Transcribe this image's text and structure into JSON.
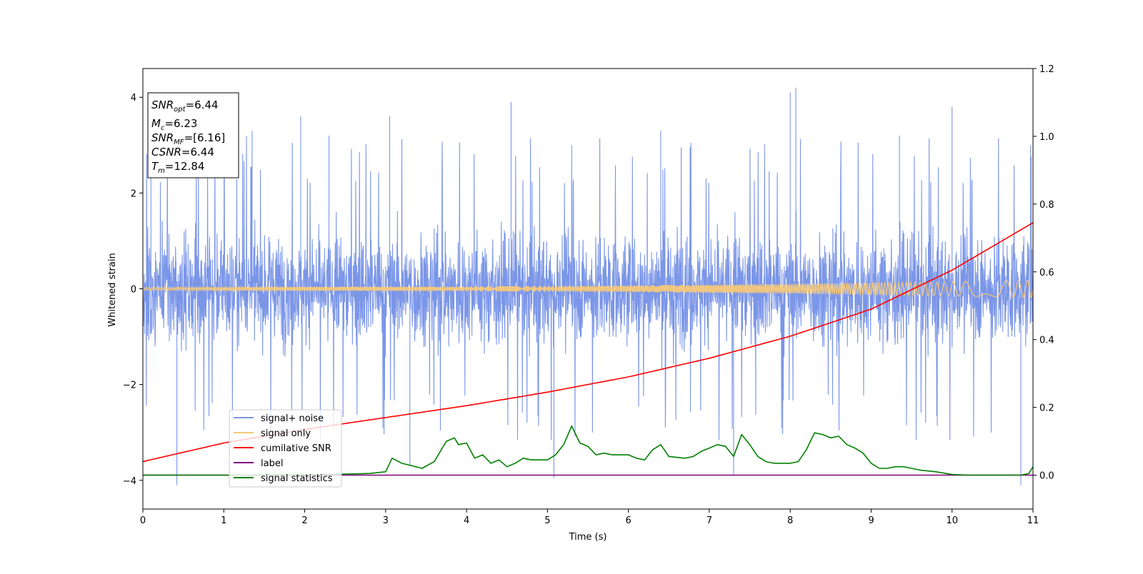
{
  "chart_data": {
    "type": "line",
    "xlabel": "Time (s)",
    "ylabel": "Whitened strain",
    "xlim": [
      0,
      11
    ],
    "ylim": [
      -4.6,
      4.6
    ],
    "y2lim": [
      -0.1,
      1.2
    ],
    "xticks": [
      0,
      1,
      2,
      3,
      4,
      5,
      6,
      7,
      8,
      9,
      10,
      11
    ],
    "yticks": [
      -4,
      -2,
      0,
      2,
      4
    ],
    "y2ticks": [
      0.0,
      0.2,
      0.4,
      0.6,
      0.8,
      1.0,
      1.2
    ],
    "xtick_labels": [
      "0",
      "1",
      "2",
      "3",
      "4",
      "5",
      "6",
      "7",
      "8",
      "9",
      "10",
      "11"
    ],
    "ytick_labels": [
      "−4",
      "−2",
      "0",
      "2",
      "4"
    ],
    "y2tick_labels": [
      "0.0",
      "0.2",
      "0.4",
      "0.6",
      "0.8",
      "1.0",
      "1.2"
    ],
    "grid": false,
    "legend_position": "lower-left",
    "series": [
      {
        "name": "signal+ noise",
        "axis": "left",
        "color": "#7b96e8",
        "note": "dense noise band, typical amplitude about ±1.7, spikes to ±4.2",
        "peaks": [
          {
            "x": 0.1,
            "y": 3.0
          },
          {
            "x": 0.42,
            "y": -4.1
          },
          {
            "x": 1.35,
            "y": 3.3
          },
          {
            "x": 1.95,
            "y": 3.6
          },
          {
            "x": 2.3,
            "y": 3.2
          },
          {
            "x": 3.05,
            "y": 3.6
          },
          {
            "x": 3.3,
            "y": -3.7
          },
          {
            "x": 4.55,
            "y": 3.9
          },
          {
            "x": 5.08,
            "y": -3.95
          },
          {
            "x": 5.3,
            "y": 3.0
          },
          {
            "x": 6.4,
            "y": 3.3
          },
          {
            "x": 7.3,
            "y": -3.9
          },
          {
            "x": 8.0,
            "y": 4.1
          },
          {
            "x": 8.07,
            "y": 4.2
          },
          {
            "x": 9.35,
            "y": 3.2
          },
          {
            "x": 10.0,
            "y": 3.8
          },
          {
            "x": 10.85,
            "y": -4.1
          },
          {
            "x": 10.97,
            "y": 3.0
          }
        ]
      },
      {
        "name": "signal only",
        "axis": "left",
        "color": "#f5c87a",
        "note": "chirp with amplitude growing from about 0.03 to 0.18",
        "amplitude_x": [
          0,
          2,
          4,
          6,
          8,
          10,
          11
        ],
        "amplitude": [
          0.03,
          0.04,
          0.05,
          0.07,
          0.1,
          0.15,
          0.18
        ]
      },
      {
        "name": "cumilative SNR",
        "axis": "right",
        "color": "#ff0000",
        "x": [
          0,
          1,
          2,
          3,
          4,
          5,
          6,
          7,
          8,
          9,
          10,
          11
        ],
        "values": [
          0.04,
          0.095,
          0.135,
          0.17,
          0.205,
          0.245,
          0.29,
          0.345,
          0.41,
          0.49,
          0.605,
          0.745
        ]
      },
      {
        "name": "label",
        "axis": "right",
        "color": "#800080",
        "x": [
          0,
          11
        ],
        "values": [
          0.0,
          0.0
        ]
      },
      {
        "name": "signal statistics",
        "axis": "right",
        "color": "#008000",
        "x": [
          0,
          1,
          2,
          2.5,
          2.8,
          3.0,
          3.08,
          3.2,
          3.45,
          3.6,
          3.75,
          3.85,
          3.9,
          4.0,
          4.1,
          4.2,
          4.3,
          4.4,
          4.5,
          4.6,
          4.7,
          4.8,
          5.0,
          5.1,
          5.2,
          5.3,
          5.4,
          5.5,
          5.6,
          5.7,
          5.8,
          5.9,
          6.0,
          6.1,
          6.2,
          6.3,
          6.4,
          6.5,
          6.7,
          6.8,
          6.9,
          7.0,
          7.1,
          7.2,
          7.3,
          7.4,
          7.5,
          7.6,
          7.7,
          7.8,
          7.9,
          8.0,
          8.1,
          8.2,
          8.3,
          8.4,
          8.5,
          8.6,
          8.7,
          8.8,
          8.9,
          9.0,
          9.1,
          9.2,
          9.3,
          9.4,
          9.5,
          9.6,
          9.8,
          10.0,
          10.2,
          10.5,
          10.85,
          10.95,
          11.0
        ],
        "values": [
          0.0,
          0.0,
          0.001,
          0.003,
          0.005,
          0.01,
          0.05,
          0.035,
          0.02,
          0.04,
          0.1,
          0.11,
          0.09,
          0.095,
          0.05,
          0.06,
          0.035,
          0.045,
          0.025,
          0.035,
          0.05,
          0.045,
          0.045,
          0.06,
          0.09,
          0.145,
          0.095,
          0.085,
          0.06,
          0.065,
          0.06,
          0.06,
          0.06,
          0.05,
          0.045,
          0.075,
          0.09,
          0.055,
          0.05,
          0.055,
          0.07,
          0.08,
          0.09,
          0.085,
          0.055,
          0.12,
          0.09,
          0.055,
          0.04,
          0.035,
          0.035,
          0.035,
          0.04,
          0.075,
          0.125,
          0.12,
          0.11,
          0.115,
          0.09,
          0.08,
          0.065,
          0.035,
          0.02,
          0.02,
          0.025,
          0.025,
          0.02,
          0.015,
          0.01,
          0.002,
          0.0,
          0.0,
          0.0,
          0.005,
          0.025
        ]
      }
    ],
    "info_box": {
      "snr_opt_main": "SNR",
      "snr_opt_sub": "opt",
      "snr_opt_value": "=6.44",
      "mc_main": "M",
      "mc_sub": "c",
      "mc_value": "=6.23",
      "snr_mf_main": "SNR",
      "snr_mf_sub": "MF",
      "snr_mf_value": "=[6.16]",
      "csnr_main": "CSNR",
      "csnr_value": "=6.44",
      "tm_main": "T",
      "tm_sub": "m",
      "tm_value": "=12.84"
    }
  }
}
